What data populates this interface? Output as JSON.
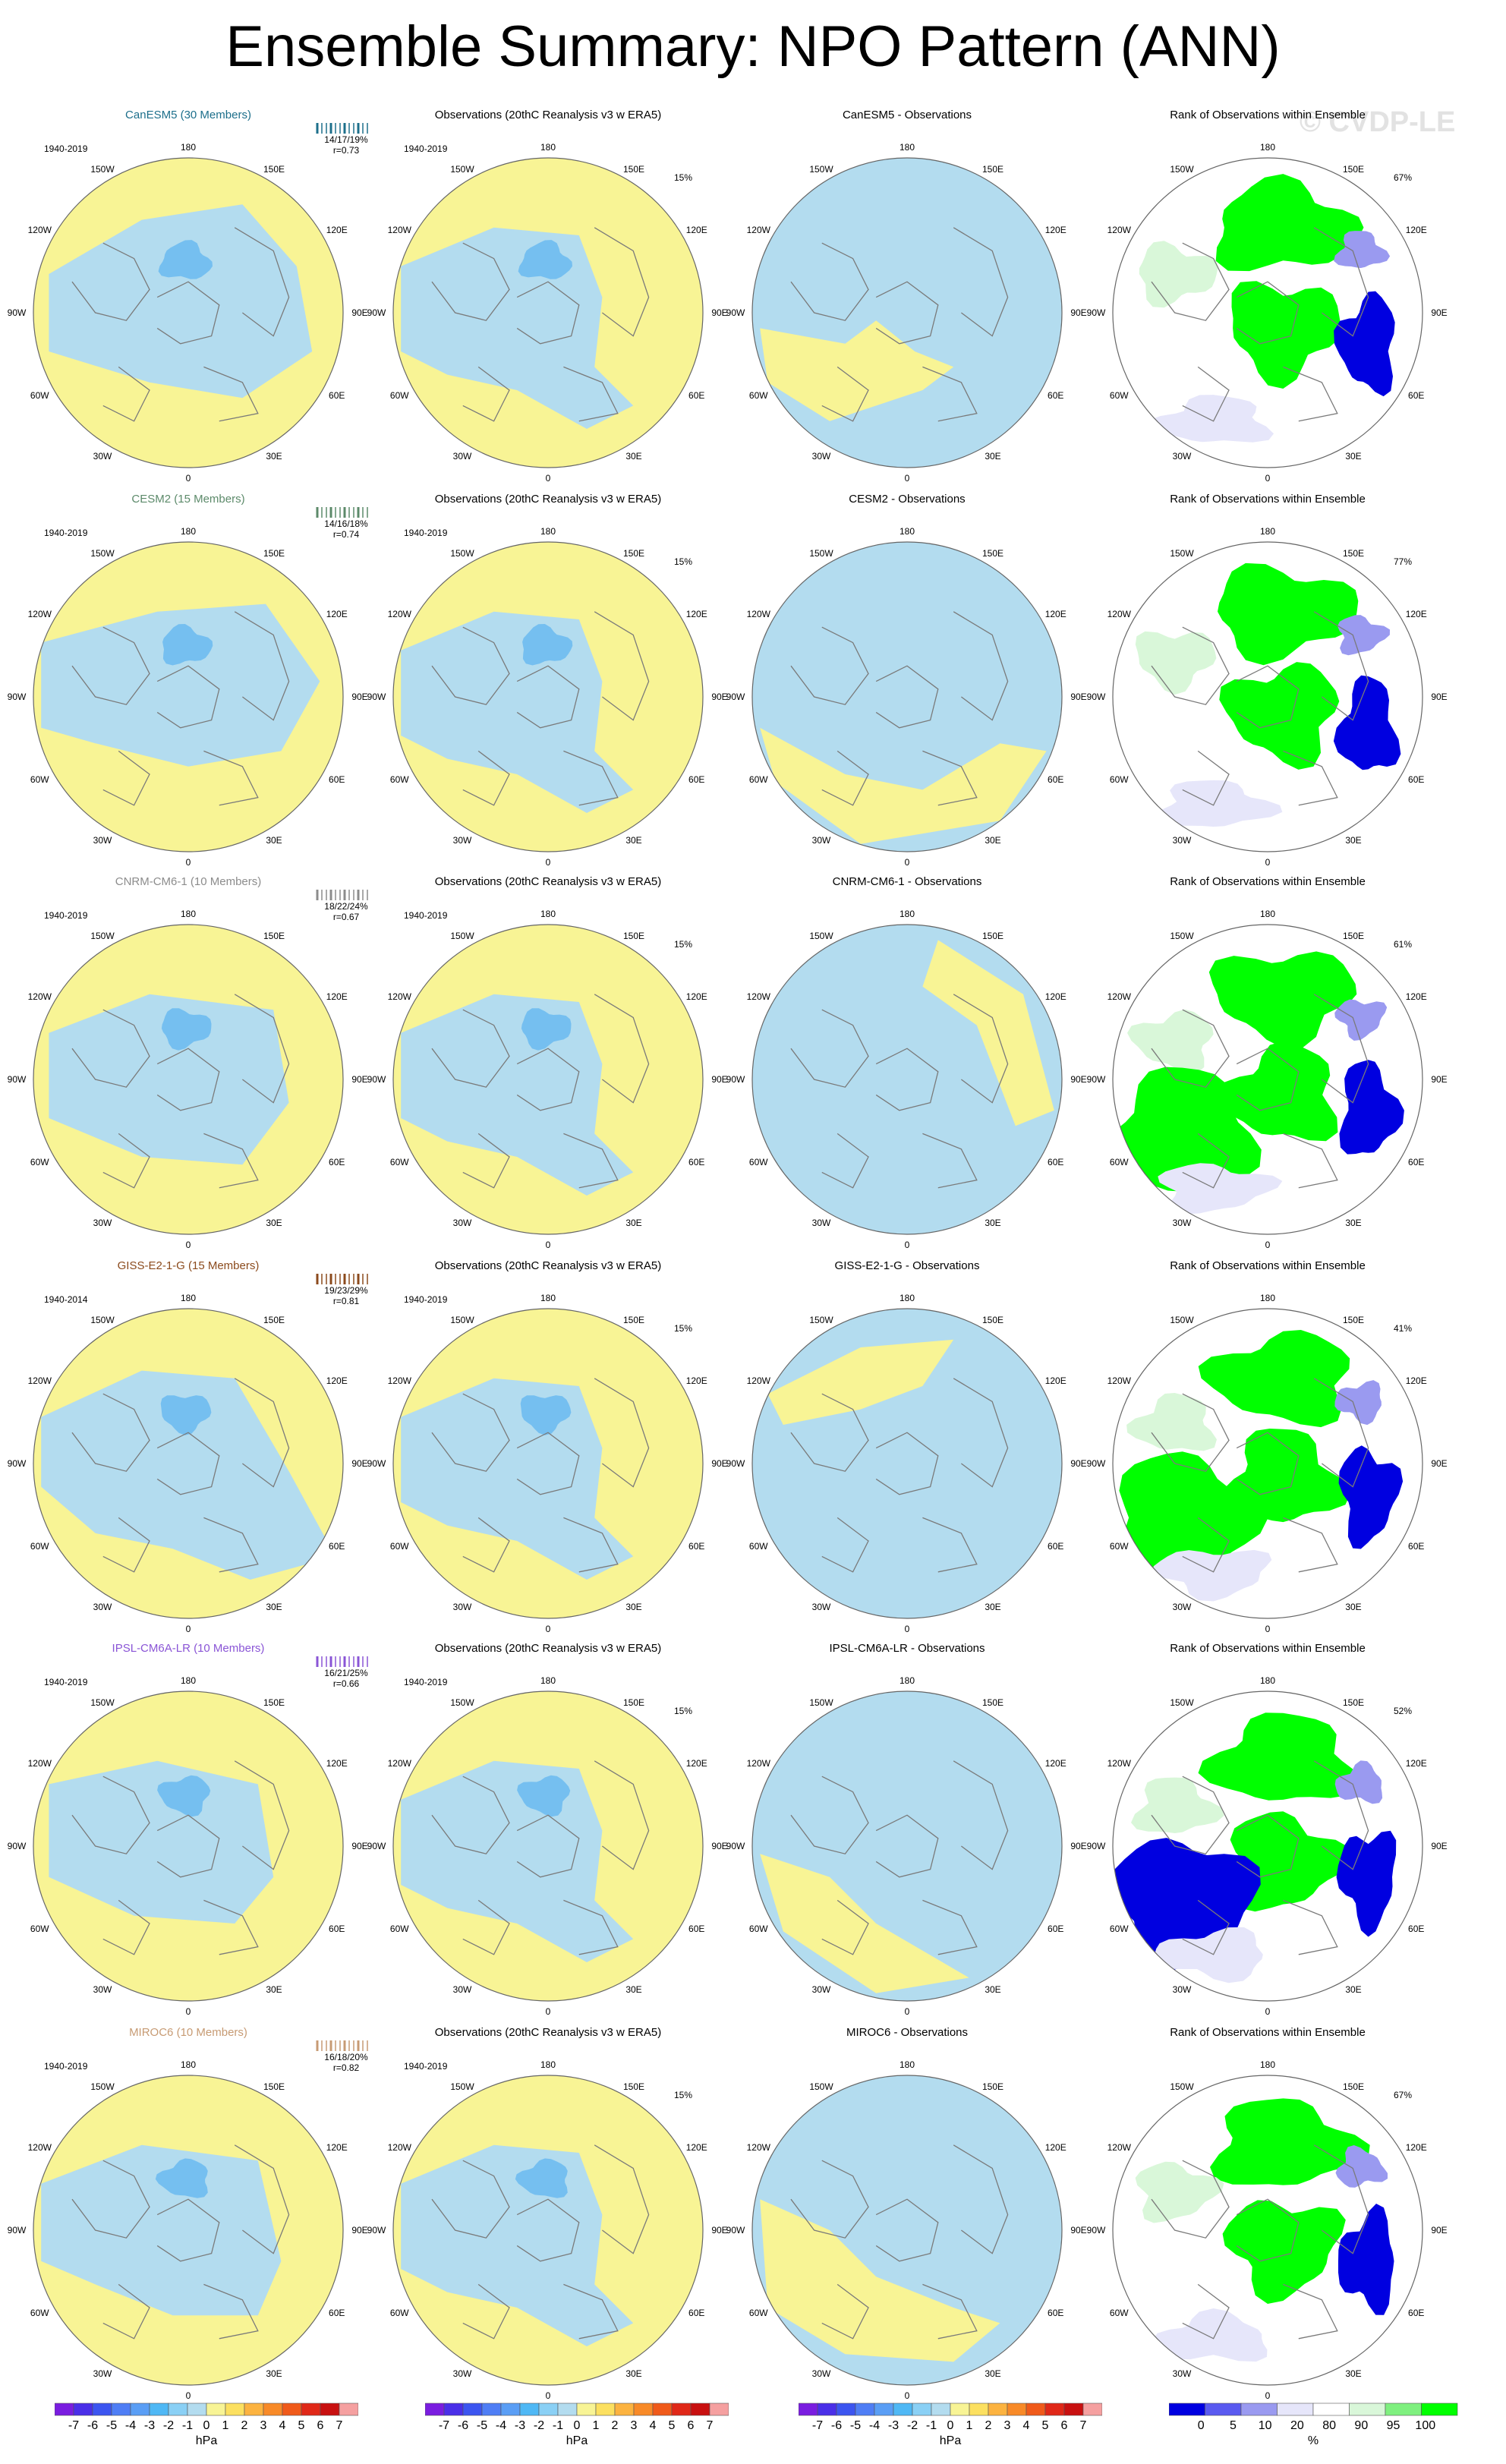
{
  "title": "Ensemble Summary: NPO Pattern (ANN)",
  "watermark": "© CVDP-LE",
  "colors": {
    "neg1": "#b3dcef",
    "neg2": "#75bff0",
    "pos1": "#f8f495",
    "coast": "#7a7a7a",
    "rank_green": "#00ff00",
    "rank_lightgreen": "#d9f7d9",
    "rank_blue": "#0000e0",
    "rank_lightblue": "#e6e6fa",
    "rank_midblue": "#9a9af0"
  },
  "lon_labels": [
    "180",
    "150E",
    "120E",
    "90E",
    "60E",
    "30E",
    "0",
    "30W",
    "60W",
    "90W",
    "120W",
    "150W"
  ],
  "rows": [
    {
      "model": "CanESM5 (30 Members)",
      "model_color": "#1d6f8b",
      "years": "1940-2019",
      "stats": "14/17/19%",
      "r": "r=0.73",
      "obs_years": "1940-2019",
      "obs_pct": "15%",
      "diff_title": "CanESM5 - Observations",
      "rank_pct": "67%"
    },
    {
      "model": "CESM2 (15 Members)",
      "model_color": "#5c8a6a",
      "years": "1940-2019",
      "stats": "14/16/18%",
      "r": "r=0.74",
      "obs_years": "1940-2019",
      "obs_pct": "15%",
      "diff_title": "CESM2 - Observations",
      "rank_pct": "77%"
    },
    {
      "model": "CNRM-CM6-1 (10 Members)",
      "model_color": "#8c8c8c",
      "years": "1940-2019",
      "stats": "18/22/24%",
      "r": "r=0.67",
      "obs_years": "1940-2019",
      "obs_pct": "15%",
      "diff_title": "CNRM-CM6-1 - Observations",
      "rank_pct": "61%"
    },
    {
      "model": "GISS-E2-1-G (15 Members)",
      "model_color": "#8b4a1c",
      "years": "1940-2014",
      "stats": "19/23/29%",
      "r": "r=0.81",
      "obs_years": "1940-2019",
      "obs_pct": "15%",
      "diff_title": "GISS-E2-1-G - Observations",
      "rank_pct": "41%"
    },
    {
      "model": "IPSL-CM6A-LR (10 Members)",
      "model_color": "#8a55d6",
      "years": "1940-2019",
      "stats": "16/21/25%",
      "r": "r=0.66",
      "obs_years": "1940-2019",
      "obs_pct": "15%",
      "diff_title": "IPSL-CM6A-LR - Observations",
      "rank_pct": "52%"
    },
    {
      "model": "MIROC6 (10 Members)",
      "model_color": "#c79b74",
      "years": "1940-2019",
      "stats": "16/18/20%",
      "r": "r=0.82",
      "obs_years": "1940-2019",
      "obs_pct": "15%",
      "diff_title": "MIROC6 - Observations",
      "rank_pct": "67%"
    }
  ],
  "obs_title": "Observations (20thC Reanalysis v3 w ERA5)",
  "rank_title": "Rank of Observations within Ensemble",
  "colorbar_hpa": {
    "unit": "hPa",
    "labels": [
      "-7",
      "-6",
      "-5",
      "-4",
      "-3",
      "-2",
      "-1",
      "0",
      "1",
      "2",
      "3",
      "4",
      "5",
      "6",
      "7"
    ],
    "colors": [
      "#7a1de0",
      "#4a2fe8",
      "#3c55f0",
      "#4f7ef5",
      "#5a9ef5",
      "#4fb8f5",
      "#8ad0f5",
      "#b3dcef",
      "#f8f495",
      "#fce060",
      "#fcb340",
      "#f88a28",
      "#f05a1a",
      "#e02818",
      "#c81010",
      "#f5a0a0"
    ]
  },
  "colorbar_rank": {
    "unit": "%",
    "labels": [
      "0",
      "5",
      "10",
      "20",
      "80",
      "90",
      "95",
      "100"
    ],
    "colors": [
      "#0000e0",
      "#5a5af0",
      "#9a9af0",
      "#e6e6fa",
      "#ffffff",
      "#d9f7d9",
      "#7ff07f",
      "#00ff00"
    ]
  }
}
